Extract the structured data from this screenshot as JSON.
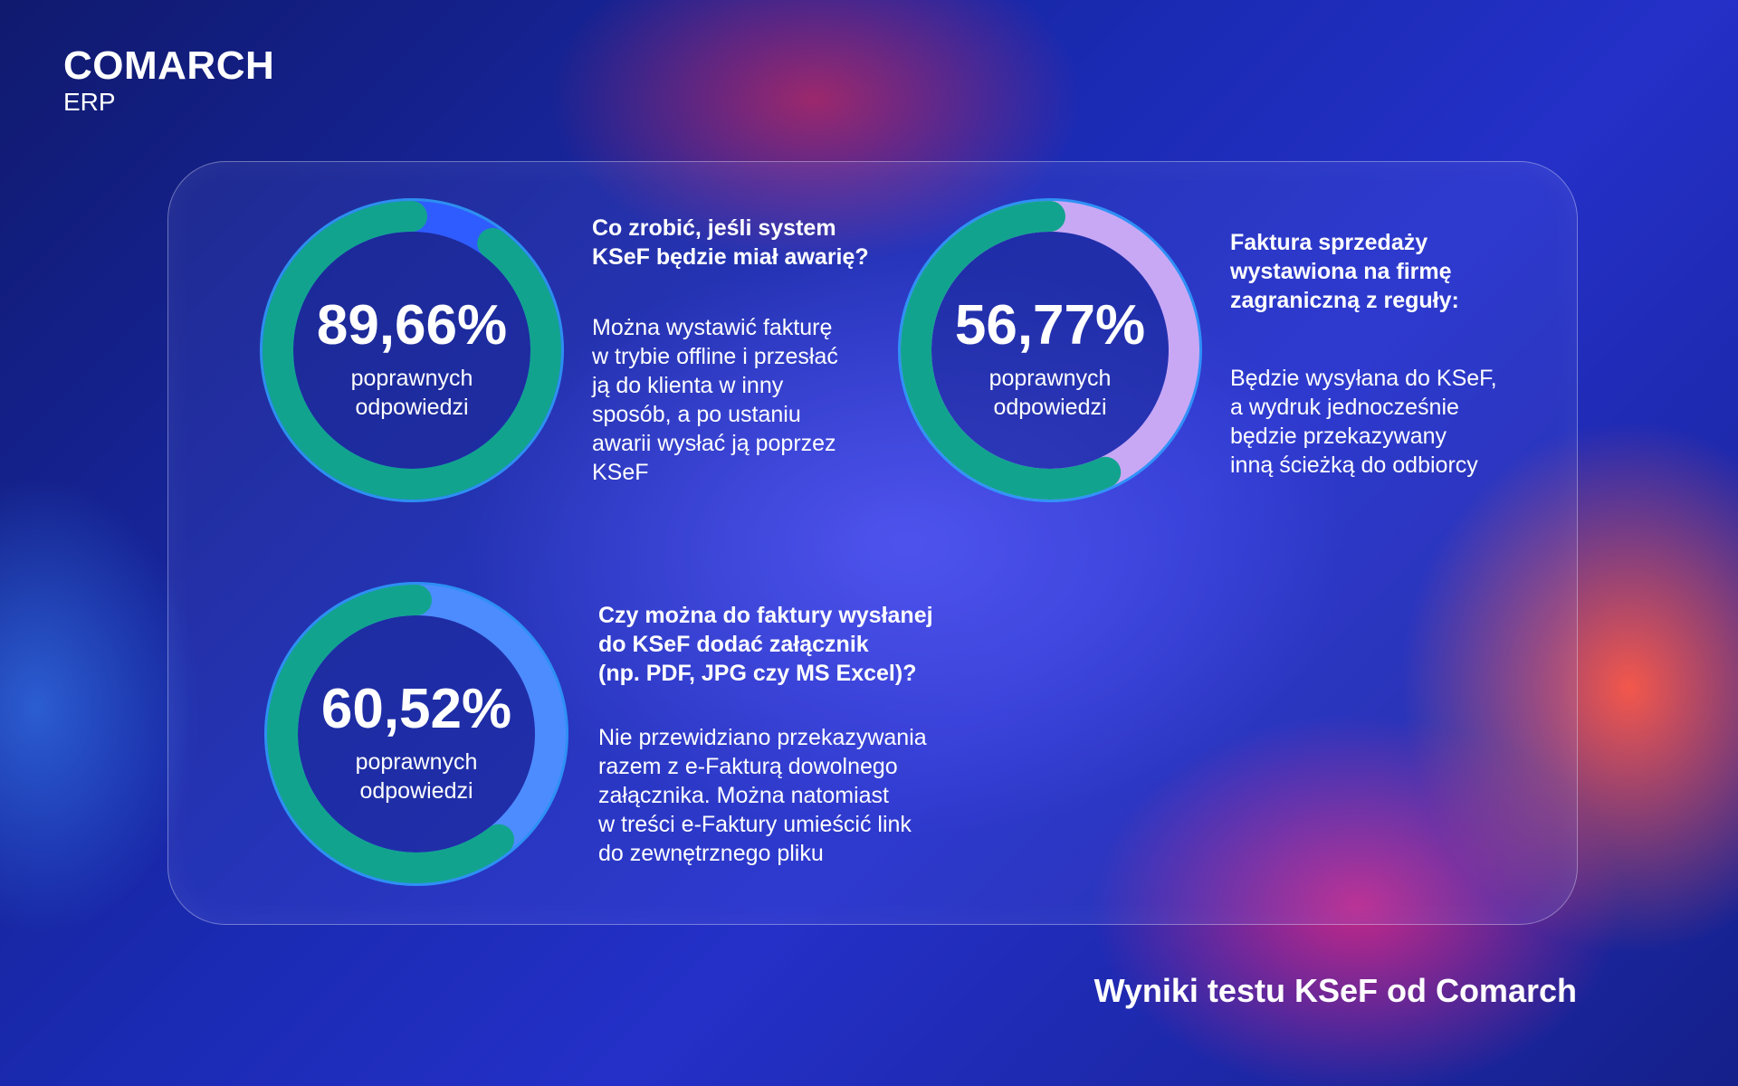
{
  "logo": {
    "name": "COMARCH",
    "sub": "ERP"
  },
  "footer": {
    "text": "Wyniki testu KSeF od Comarch"
  },
  "chart_data": [
    {
      "type": "pie",
      "value": 89.66,
      "value_label": "89,66%",
      "center_label": "poprawnych\nodpowiedzi",
      "question": "Co zrobić, jeśli system\nKSeF będzie miał awarię?",
      "answer": "Można wystawić fakturę\nw trybie offline i przesłać\nją do klienta w inny\nsposób, a po ustaniu\nawarii wysłać ją poprzez\nKSeF",
      "colors": {
        "filled": "#12a38f",
        "remainder": "#2f5cff",
        "outer": "#2fa0ff"
      }
    },
    {
      "type": "pie",
      "value": 56.77,
      "value_label": "56,77%",
      "center_label": "poprawnych\nodpowiedzi",
      "question": "Faktura sprzedaży\nwystawiona na firmę\nzagraniczną z reguły:",
      "answer": "Będzie wysyłana do KSeF,\na wydruk jednocześnie\nbędzie przekazywany\ninną ścieżką do odbiorcy",
      "colors": {
        "filled": "#12a38f",
        "remainder": "#c8a8f5",
        "outer": "#2fa0ff"
      }
    },
    {
      "type": "pie",
      "value": 60.52,
      "value_label": "60,52%",
      "center_label": "poprawnych\nodpowiedzi",
      "question": "Czy można do faktury wysłanej\ndo KSeF dodać załącznik\n(np. PDF, JPG czy MS Excel)?",
      "answer": "Nie przewidziano przekazywania\nrazem z e-Fakturą dowolnego\nzałącznika. Można natomiast\nw treści e-Faktury umieścić link\ndo zewnętrznego pliku",
      "colors": {
        "filled": "#12a38f",
        "remainder": "#4d8cff",
        "outer": "#2fa0ff"
      }
    }
  ]
}
